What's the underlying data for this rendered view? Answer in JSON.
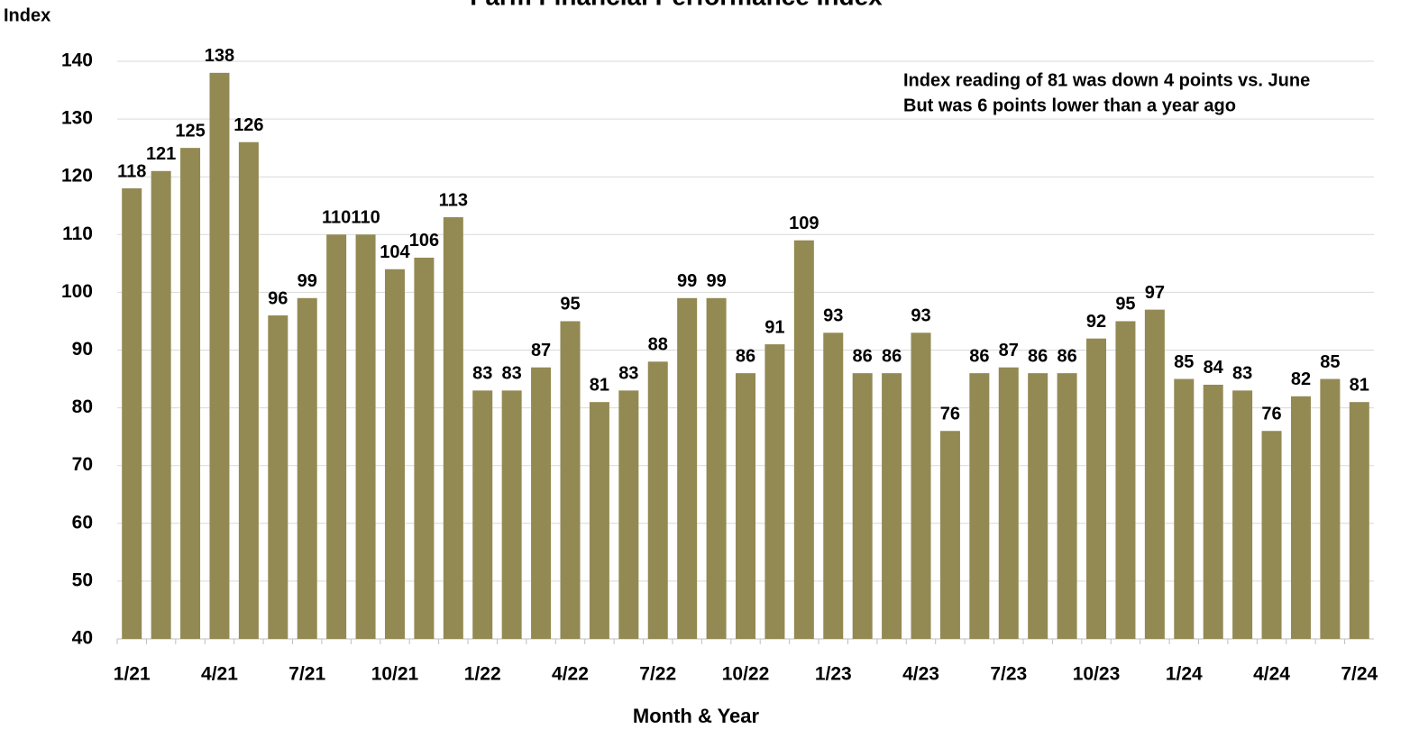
{
  "chart_data": {
    "type": "bar",
    "title": "Farm Financial Performance Index",
    "y_label": "Index",
    "x_label": "Month & Year",
    "annotations": [
      "Index reading of 81 was down 4 points vs. June",
      "But was 6 points lower than a year ago"
    ],
    "categories": [
      "1/21",
      null,
      null,
      "4/21",
      null,
      null,
      "7/21",
      null,
      null,
      "10/21",
      null,
      null,
      "1/22",
      null,
      null,
      "4/22",
      null,
      null,
      "7/22",
      null,
      null,
      "10/22",
      null,
      null,
      "1/23",
      null,
      null,
      "4/23",
      null,
      null,
      "7/23",
      null,
      null,
      "10/23",
      null,
      null,
      "1/24",
      null,
      null,
      "4/24",
      null,
      null,
      "7/24"
    ],
    "values": [
      118,
      121,
      125,
      138,
      126,
      96,
      99,
      110,
      110,
      104,
      106,
      113,
      83,
      83,
      87,
      95,
      81,
      83,
      88,
      99,
      99,
      86,
      91,
      109,
      93,
      86,
      86,
      93,
      76,
      86,
      87,
      86,
      86,
      92,
      95,
      97,
      85,
      84,
      83,
      76,
      82,
      85,
      81
    ],
    "color": "#938953",
    "ylim": [
      40,
      140
    ],
    "yticks": [
      40,
      50,
      60,
      70,
      80,
      90,
      100,
      110,
      120,
      130,
      140
    ],
    "grid": true
  }
}
